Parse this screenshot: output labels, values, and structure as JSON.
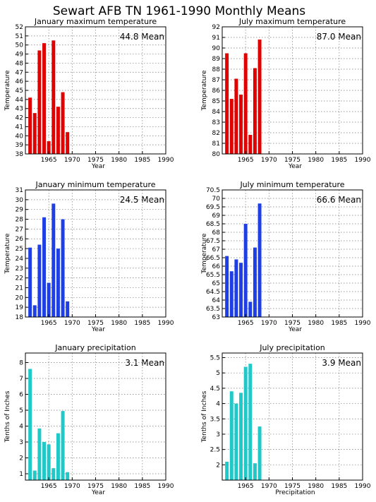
{
  "page_title": "Sewart AFB TN   1961-1990 Monthly Means",
  "chart_data": [
    {
      "type": "bar",
      "title": "January maximum temperature",
      "xlabel": "Year",
      "ylabel": "Temperature",
      "mean_label": "44.8  Mean",
      "color": "#e00000",
      "x": [
        1961,
        1962,
        1963,
        1964,
        1965,
        1966,
        1967,
        1968,
        1969,
        1970
      ],
      "values": [
        44.2,
        42.5,
        49.4,
        50.2,
        39.4,
        50.5,
        43.2,
        44.8,
        40.4,
        null
      ],
      "xlim": [
        1960,
        1990
      ],
      "ylim": [
        38,
        52
      ],
      "xticks": [
        1965,
        1970,
        1975,
        1980,
        1985,
        1990
      ],
      "yticks": [
        38,
        39,
        40,
        41,
        42,
        43,
        44,
        45,
        46,
        47,
        48,
        49,
        50,
        51,
        52
      ],
      "grid": true
    },
    {
      "type": "bar",
      "title": "July maximum temperature",
      "xlabel": "Year",
      "ylabel": "Temperature",
      "mean_label": "87.0  Mean",
      "color": "#e00000",
      "x": [
        1961,
        1962,
        1963,
        1964,
        1965,
        1966,
        1967,
        1968,
        1969
      ],
      "values": [
        89.5,
        85.2,
        87.1,
        85.6,
        89.5,
        81.8,
        88.1,
        90.8,
        null
      ],
      "xlim": [
        1960,
        1990
      ],
      "ylim": [
        80,
        92
      ],
      "xticks": [
        1965,
        1970,
        1975,
        1980,
        1985,
        1990
      ],
      "yticks": [
        80,
        81,
        82,
        83,
        84,
        85,
        86,
        87,
        88,
        89,
        90,
        91,
        92
      ],
      "ytick_labels": [
        "80",
        "81",
        "82",
        "83",
        "84",
        "85",
        "86",
        "87",
        "88",
        "89",
        "90",
        "91",
        "92"
      ],
      "grid": true
    },
    {
      "type": "bar",
      "title": "January minimum temperature",
      "xlabel": "Year",
      "ylabel": "Temperature",
      "mean_label": "24.5  Mean",
      "color": "#1f3fe6",
      "x": [
        1961,
        1962,
        1963,
        1964,
        1965,
        1966,
        1967,
        1968,
        1969,
        1970
      ],
      "values": [
        25.1,
        19.2,
        25.4,
        28.2,
        21.5,
        29.6,
        25.0,
        28.0,
        19.6,
        null
      ],
      "xlim": [
        1960,
        1990
      ],
      "ylim": [
        18,
        31
      ],
      "xticks": [
        1965,
        1970,
        1975,
        1980,
        1985,
        1990
      ],
      "yticks": [
        18,
        19,
        20,
        21,
        22,
        23,
        24,
        25,
        26,
        27,
        28,
        29,
        30,
        31
      ],
      "grid": true
    },
    {
      "type": "bar",
      "title": "July minimum temperature",
      "xlabel": "Year",
      "ylabel": "Temperature",
      "mean_label": "66.6  Mean",
      "color": "#1f3fe6",
      "x": [
        1961,
        1962,
        1963,
        1964,
        1965,
        1966,
        1967,
        1968,
        1969
      ],
      "values": [
        66.6,
        65.7,
        66.4,
        66.2,
        68.5,
        63.9,
        67.1,
        69.7,
        null
      ],
      "xlim": [
        1960,
        1990
      ],
      "ylim": [
        63,
        70.5
      ],
      "xticks": [
        1965,
        1970,
        1975,
        1980,
        1985,
        1990
      ],
      "yticks": [
        63,
        63.5,
        64,
        64.5,
        65,
        65.5,
        66,
        66.5,
        67,
        67.5,
        68,
        68.5,
        69,
        69.5,
        70,
        70.5
      ],
      "ytick_labels": [
        "63",
        "63.5",
        "64",
        "64.5",
        "65",
        "65.5",
        "66",
        "66.5",
        "67",
        "67.5",
        "68",
        "68.5",
        "69",
        "69.5",
        "70",
        "70.5"
      ],
      "grid": true
    },
    {
      "type": "bar",
      "title": "January precipitation",
      "xlabel": "Year",
      "ylabel": "Tenths of Inches",
      "mean_label": "3.1  Mean",
      "color": "#20c8c8",
      "x": [
        1961,
        1962,
        1963,
        1964,
        1965,
        1966,
        1967,
        1968,
        1969,
        1970
      ],
      "values": [
        7.6,
        1.2,
        3.85,
        3.0,
        2.85,
        1.35,
        3.55,
        4.95,
        1.1,
        null
      ],
      "xlim": [
        1960,
        1990
      ],
      "ylim": [
        0.6,
        8.6
      ],
      "xticks": [
        1965,
        1970,
        1975,
        1980,
        1985,
        1990
      ],
      "yticks": [
        1,
        2,
        3,
        4,
        5,
        6,
        7,
        8
      ],
      "grid": true
    },
    {
      "type": "bar",
      "title": "July precipitation",
      "xlabel": "Precipitation",
      "ylabel": "Tenths of Inches",
      "mean_label": "3.9  Mean",
      "color": "#20c8c8",
      "x": [
        1961,
        1962,
        1963,
        1964,
        1965,
        1966,
        1967,
        1968,
        1969
      ],
      "values": [
        2.1,
        4.4,
        4.0,
        4.35,
        5.2,
        5.3,
        2.05,
        3.25,
        null
      ],
      "xlim": [
        1960,
        1990
      ],
      "ylim": [
        1.5,
        5.65
      ],
      "xticks": [
        1965,
        1970,
        1975,
        1980,
        1985,
        1990
      ],
      "yticks": [
        2,
        2.5,
        3,
        3.5,
        4,
        4.5,
        5,
        5.5
      ],
      "grid": true
    }
  ]
}
